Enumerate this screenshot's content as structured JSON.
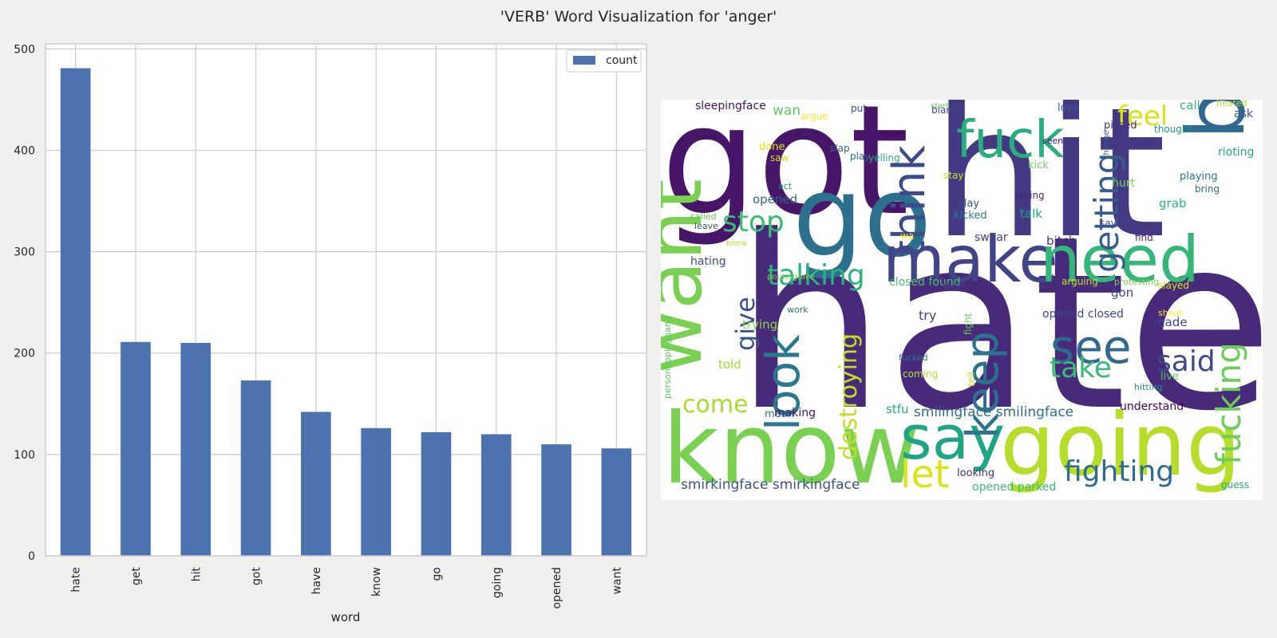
{
  "figure": {
    "title": "'VERB' Word Visualization for 'anger'"
  },
  "chart_data": [
    {
      "type": "bar",
      "categories": [
        "hate",
        "get",
        "hit",
        "got",
        "have",
        "know",
        "go",
        "going",
        "opened",
        "want"
      ],
      "series": [
        {
          "name": "count",
          "values": [
            481,
            211,
            210,
            173,
            142,
            126,
            122,
            120,
            110,
            106
          ],
          "color": "#4c72b0"
        }
      ],
      "xlabel": "word",
      "ylabel": "",
      "ylim": [
        0,
        505
      ],
      "yticks": [
        0,
        100,
        200,
        300,
        400,
        500
      ],
      "grid": true,
      "legend": "top-right",
      "colors": {
        "background": "#f0f0f0",
        "plot_background": "#ffffff",
        "grid": "#cccccc",
        "frame": "#cccccc"
      }
    },
    {
      "type": "wordcloud",
      "background": "#ffffff",
      "palette": "viridis",
      "words": [
        {
          "text": "hate",
          "color": "#472a7a"
        },
        {
          "text": "hit",
          "color": "#443a83"
        },
        {
          "text": "got",
          "color": "#481668"
        },
        {
          "text": "go",
          "color": "#2d708e"
        },
        {
          "text": "know",
          "color": "#7ad151"
        },
        {
          "text": "going",
          "color": "#b5de2b"
        },
        {
          "text": "want",
          "color": "#7ad151"
        },
        {
          "text": "bout",
          "color": "#31688e"
        },
        {
          "text": "make",
          "color": "#414487"
        },
        {
          "text": "need",
          "color": "#35b779"
        },
        {
          "text": "fuck",
          "color": "#29af7f"
        },
        {
          "text": "say",
          "color": "#20a486"
        },
        {
          "text": "think",
          "color": "#3e4a89"
        },
        {
          "text": "look",
          "color": "#2a788e"
        },
        {
          "text": "keep",
          "color": "#2c728e"
        },
        {
          "text": "see",
          "color": "#31688e"
        },
        {
          "text": "getting",
          "color": "#365c8d"
        },
        {
          "text": "fucking",
          "color": "#6ccd5a"
        },
        {
          "text": "feel",
          "color": "#dde318"
        },
        {
          "text": "talking",
          "color": "#2db27d"
        },
        {
          "text": "stop",
          "color": "#3bbb75"
        },
        {
          "text": "let",
          "color": "#dde318"
        },
        {
          "text": "fighting",
          "color": "#2f6b8e"
        },
        {
          "text": "take",
          "color": "#3bbb75"
        },
        {
          "text": "said",
          "color": "#3e4989"
        },
        {
          "text": "give",
          "color": "#3b528b"
        },
        {
          "text": "destroying",
          "color": "#c2df23"
        },
        {
          "text": "come",
          "color": "#a8db34"
        },
        {
          "text": "smirkingface smirkingface",
          "color": "#3b528b"
        },
        {
          "text": "smilingface smilingface",
          "color": "#2e6e8e"
        },
        {
          "text": "sleepingface",
          "color": "#471164"
        },
        {
          "text": "wan",
          "color": "#5ec962"
        },
        {
          "text": "opened",
          "color": "#31688e"
        },
        {
          "text": "hating",
          "color": "#3e4c8a"
        },
        {
          "text": "closed found",
          "color": "#4ac16d"
        },
        {
          "text": "wish",
          "color": "#433e85"
        },
        {
          "text": "try",
          "color": "#424086"
        },
        {
          "text": "trying",
          "color": "#8ed645"
        },
        {
          "text": "told",
          "color": "#a0da39"
        },
        {
          "text": "made",
          "color": "#404588"
        },
        {
          "text": "opened closed",
          "color": "#3f4788"
        },
        {
          "text": "gon",
          "color": "#3f4889"
        },
        {
          "text": "live",
          "color": "#5ec962"
        },
        {
          "text": "mean",
          "color": "#2c738e"
        },
        {
          "text": "making",
          "color": "#48186a"
        },
        {
          "text": "stfu",
          "color": "#29af7f"
        },
        {
          "text": "understand",
          "color": "#450559"
        },
        {
          "text": "looking",
          "color": "#46307e"
        },
        {
          "text": "opened parked",
          "color": "#3bbb75"
        },
        {
          "text": "guess",
          "color": "#23a983"
        },
        {
          "text": "talk",
          "color": "#1f9e89"
        },
        {
          "text": "swear",
          "color": "#433e85"
        },
        {
          "text": "bitch",
          "color": "#46337f"
        },
        {
          "text": "grab",
          "color": "#2db27d"
        },
        {
          "text": "slay",
          "color": "#3b528b"
        },
        {
          "text": "kicked",
          "color": "#277f8e"
        },
        {
          "text": "taking",
          "color": "#482475"
        },
        {
          "text": "saying",
          "color": "#414487"
        },
        {
          "text": "find",
          "color": "#481f70"
        },
        {
          "text": "hurt",
          "color": "#7ad151"
        },
        {
          "text": "kick",
          "color": "#75d054"
        },
        {
          "text": "playing",
          "color": "#2a788e"
        },
        {
          "text": "bring",
          "color": "#2c728e"
        },
        {
          "text": "rioting",
          "color": "#22a884"
        },
        {
          "text": "call",
          "color": "#35b779"
        },
        {
          "text": "heated",
          "color": "#b5de2b"
        },
        {
          "text": "ask",
          "color": "#3b528b"
        },
        {
          "text": "thought",
          "color": "#21918c"
        },
        {
          "text": "pissed",
          "color": "#46307e"
        },
        {
          "text": "seen",
          "color": "#48186a"
        },
        {
          "text": "change",
          "color": "#355f8d"
        },
        {
          "text": "love",
          "color": "#365c8d"
        },
        {
          "text": "blame",
          "color": "#414487"
        },
        {
          "text": "start",
          "color": "#5ec962"
        },
        {
          "text": "care",
          "color": "#440154"
        },
        {
          "text": "argue",
          "color": "#fde725"
        },
        {
          "text": "slap",
          "color": "#31688e"
        },
        {
          "text": "put",
          "color": "#3e4a89"
        },
        {
          "text": "done",
          "color": "#dde318"
        },
        {
          "text": "play",
          "color": "#2f6c8e"
        },
        {
          "text": "yelling",
          "color": "#2ab07f"
        },
        {
          "text": "saw",
          "color": "#d2e21b"
        },
        {
          "text": "stay",
          "color": "#cae11f"
        },
        {
          "text": "act",
          "color": "#1f988b"
        },
        {
          "text": "called",
          "color": "#5ec962"
        },
        {
          "text": "leave",
          "color": "#39558c"
        },
        {
          "text": "knew",
          "color": "#bddf26"
        },
        {
          "text": "wa",
          "color": "#fde725"
        },
        {
          "text": "poutingface",
          "color": "#7ad151"
        },
        {
          "text": "persontippinghand",
          "color": "#5ec962"
        },
        {
          "text": "work",
          "color": "#2c738e"
        },
        {
          "text": "fight",
          "color": "#6ccd5a"
        },
        {
          "text": "tell",
          "color": "#c2df23"
        },
        {
          "text": "fucked",
          "color": "#2c728e"
        },
        {
          "text": "coming",
          "color": "#b5de2b"
        },
        {
          "text": "arguing",
          "color": "#bddf26"
        },
        {
          "text": "protesting",
          "color": "#7ad151"
        },
        {
          "text": "slayed",
          "color": "#d8e219"
        },
        {
          "text": "shout",
          "color": "#fde725"
        },
        {
          "text": "hitting",
          "color": "#21918c"
        }
      ]
    }
  ]
}
